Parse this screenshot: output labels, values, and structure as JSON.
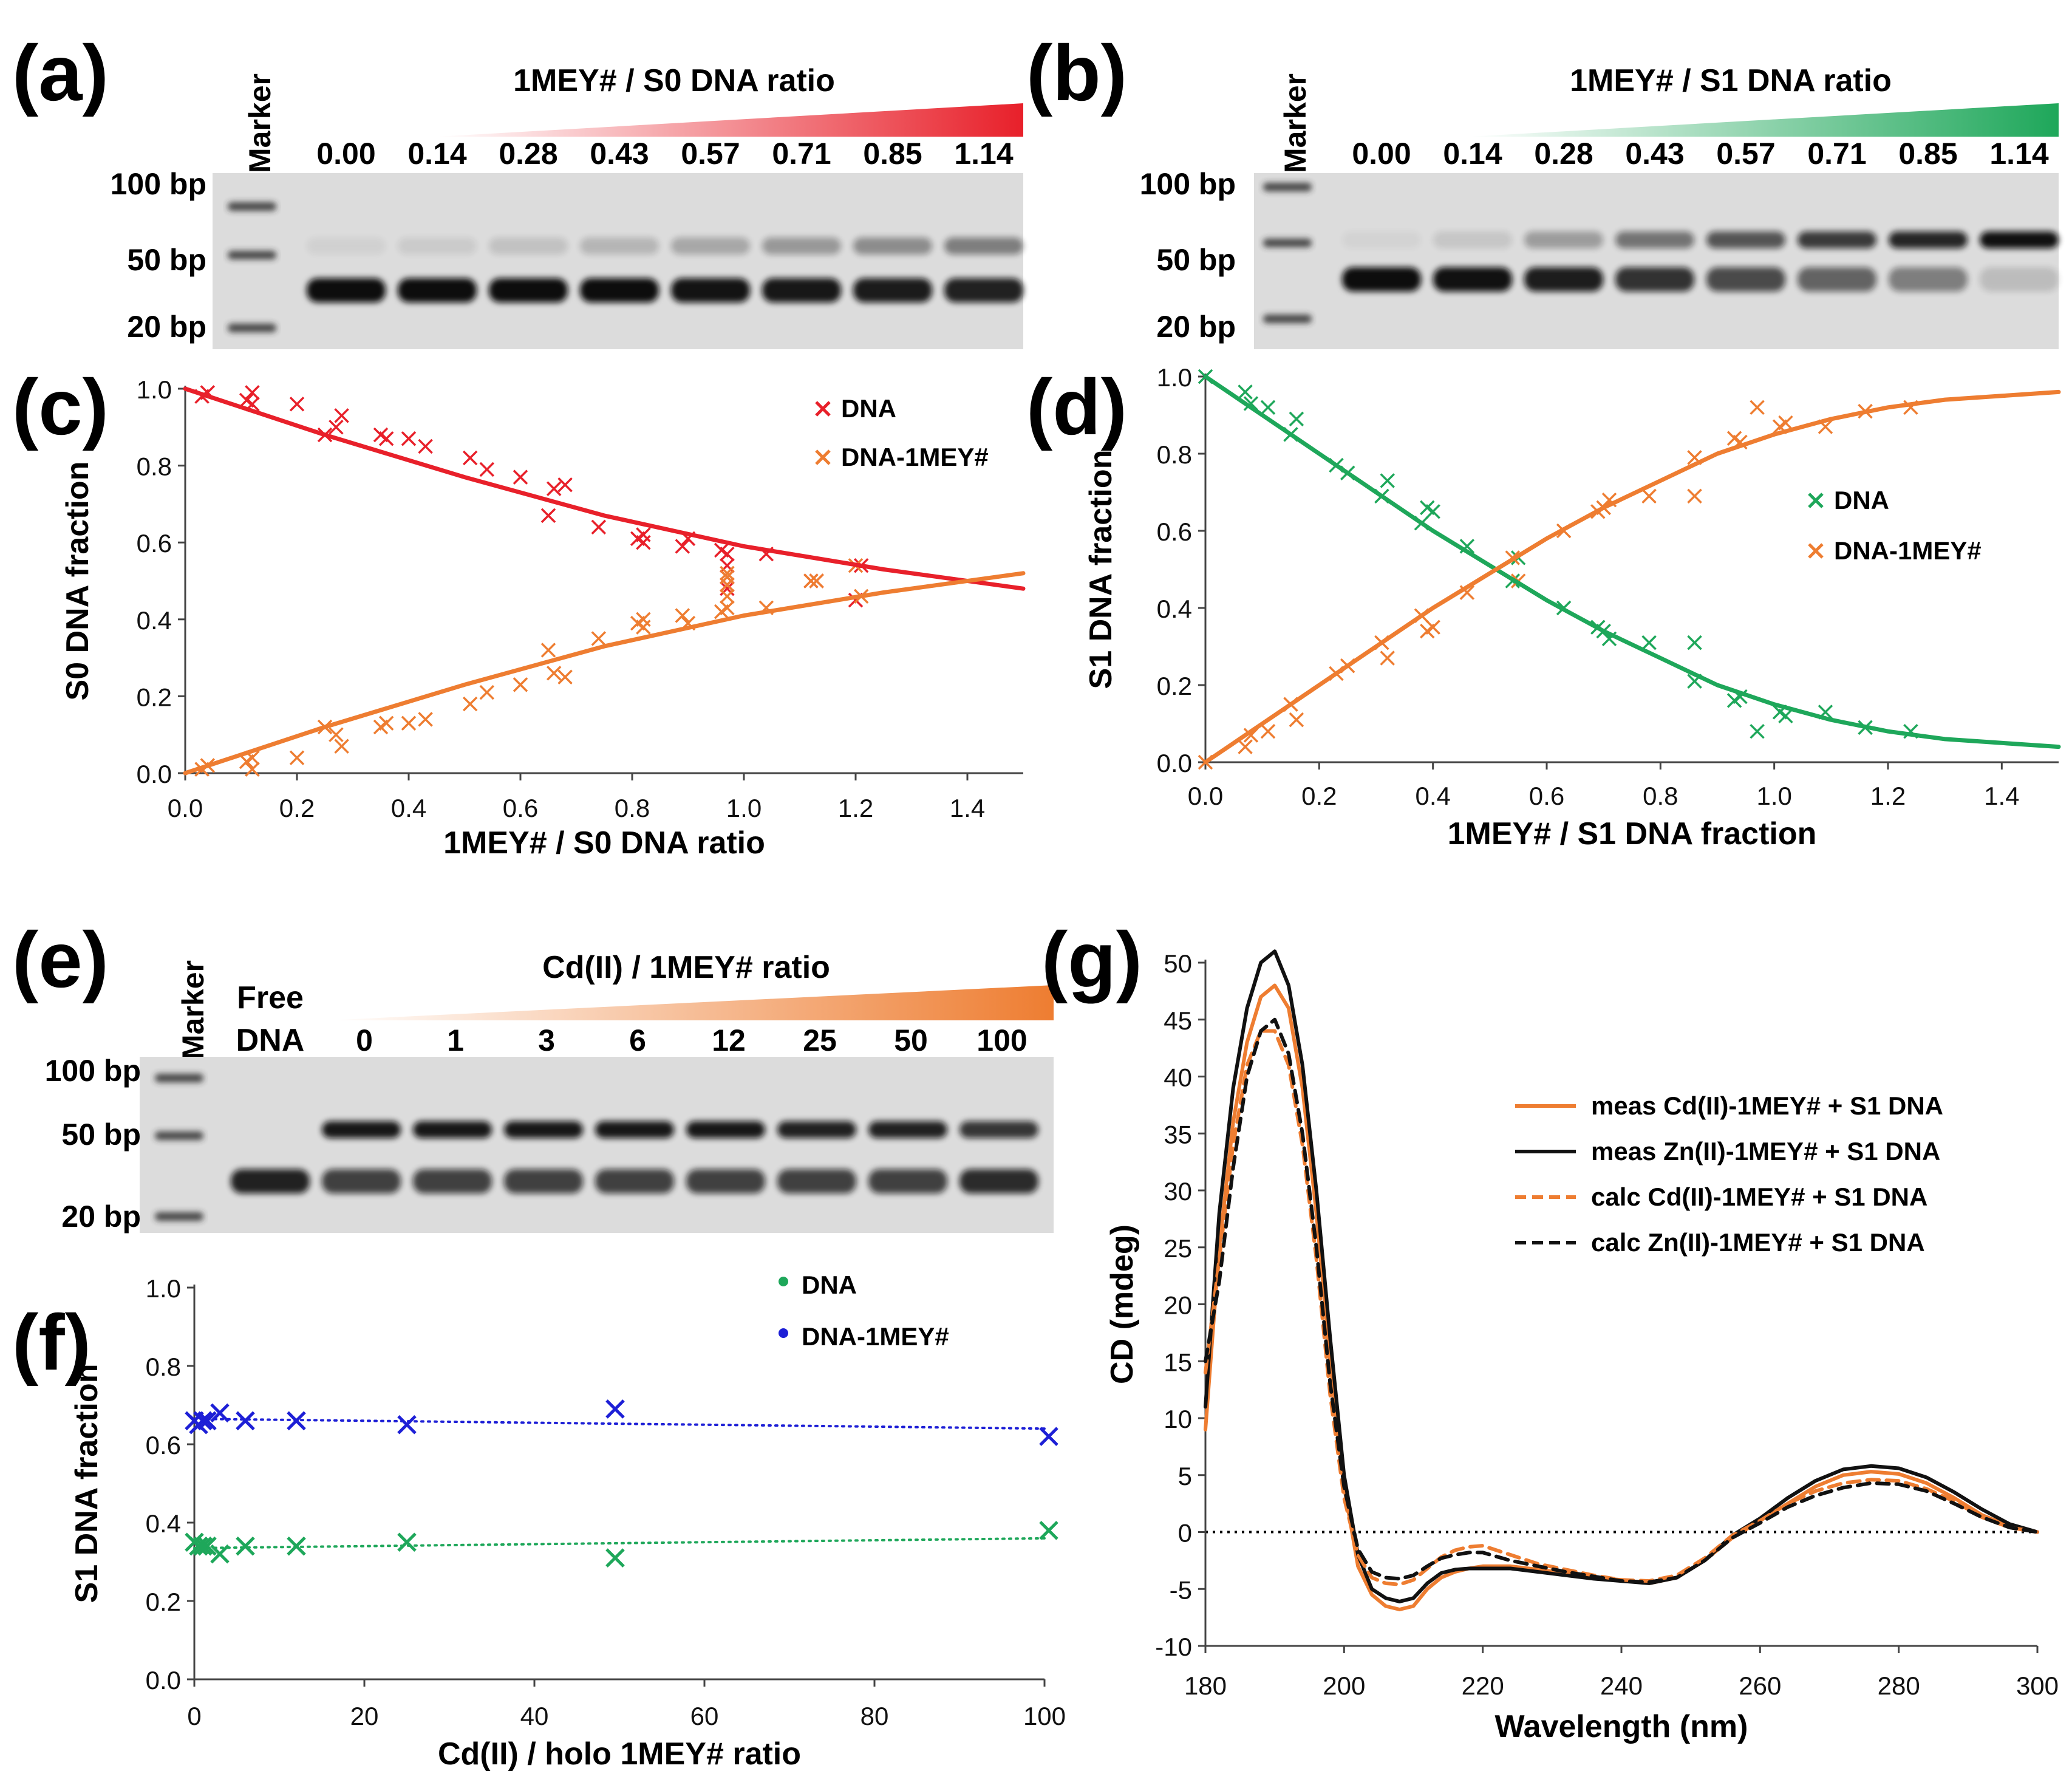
{
  "colors": {
    "red": "#e8202a",
    "orange": "#ee7d31",
    "green": "#1ea75a",
    "blue": "#1d1fd6",
    "black": "#111111",
    "gel_bg": "#dcdcdc"
  },
  "panel_a": {
    "letter": "(a)",
    "title": "1MEY# / S0 DNA ratio",
    "marker_label": "Marker",
    "lanes": [
      "0.00",
      "0.14",
      "0.28",
      "0.43",
      "0.57",
      "0.71",
      "0.85",
      "1.14"
    ],
    "size_labels": [
      "100 bp",
      "50 bp",
      "20 bp"
    ],
    "complex_band_intensity": [
      0.05,
      0.08,
      0.12,
      0.18,
      0.25,
      0.32,
      0.38,
      0.45
    ],
    "free_band_intensity": [
      1.0,
      1.0,
      1.0,
      1.0,
      0.97,
      0.95,
      0.93,
      0.9
    ]
  },
  "panel_b": {
    "letter": "(b)",
    "title": "1MEY# / S1 DNA ratio",
    "marker_label": "Marker",
    "lanes": [
      "0.00",
      "0.14",
      "0.28",
      "0.43",
      "0.57",
      "0.71",
      "0.85",
      "1.14"
    ],
    "size_labels": [
      "100 bp",
      "50 bp",
      "20 bp"
    ],
    "complex_band_intensity": [
      0.04,
      0.1,
      0.3,
      0.5,
      0.65,
      0.78,
      0.88,
      0.98
    ],
    "free_band_intensity": [
      1.0,
      0.98,
      0.92,
      0.82,
      0.7,
      0.58,
      0.45,
      0.15
    ]
  },
  "panel_e": {
    "letter": "(e)",
    "title": "Cd(II) / 1MEY# ratio",
    "marker_label": "Marker",
    "free_dna_label": [
      "Free",
      "DNA"
    ],
    "lanes": [
      "0",
      "1",
      "3",
      "6",
      "12",
      "25",
      "50",
      "100"
    ],
    "size_labels": [
      "100 bp",
      "50 bp",
      "20 bp"
    ],
    "complex_band_intensity": [
      0.0,
      0.95,
      0.95,
      0.95,
      0.95,
      0.95,
      0.9,
      0.9,
      0.8
    ],
    "free_band_intensity": [
      0.9,
      0.75,
      0.75,
      0.75,
      0.75,
      0.75,
      0.75,
      0.75,
      0.85
    ]
  },
  "chart_data": [
    {
      "id": "c",
      "letter": "(c)",
      "type": "scatter",
      "xlabel": "1MEY# / S0 DNA ratio",
      "ylabel": "S0 DNA fraction",
      "xlim": [
        0,
        1.5
      ],
      "ylim": [
        0,
        1.0
      ],
      "xticks": [
        "0.0",
        "0.2",
        "0.4",
        "0.6",
        "0.8",
        "1.0",
        "1.2",
        "1.4"
      ],
      "yticks": [
        "0.0",
        "0.2",
        "0.4",
        "0.6",
        "0.8",
        "1.0"
      ],
      "legend": [
        "DNA",
        "DNA-1MEY#"
      ],
      "series": [
        {
          "name": "DNA",
          "color": "red",
          "x": [
            0.03,
            0.04,
            0.11,
            0.12,
            0.12,
            0.2,
            0.25,
            0.27,
            0.28,
            0.35,
            0.36,
            0.4,
            0.43,
            0.51,
            0.54,
            0.6,
            0.65,
            0.66,
            0.68,
            0.74,
            0.81,
            0.82,
            0.82,
            0.89,
            0.9,
            0.96,
            0.97,
            0.97,
            0.97,
            0.97,
            0.97,
            1.04,
            1.12,
            1.13,
            1.2,
            1.21
          ],
          "y": [
            0.98,
            0.99,
            0.97,
            0.99,
            0.96,
            0.96,
            0.88,
            0.9,
            0.93,
            0.88,
            0.87,
            0.87,
            0.85,
            0.82,
            0.79,
            0.77,
            0.67,
            0.74,
            0.75,
            0.64,
            0.61,
            0.62,
            0.6,
            0.59,
            0.61,
            0.58,
            0.54,
            0.51,
            0.49,
            0.48,
            0.57,
            0.57,
            0.5,
            0.5,
            0.45,
            0.54
          ]
        },
        {
          "name": "DNA-1MEY#",
          "color": "orange",
          "x": [
            0.03,
            0.04,
            0.11,
            0.12,
            0.12,
            0.2,
            0.25,
            0.27,
            0.28,
            0.35,
            0.36,
            0.4,
            0.43,
            0.51,
            0.54,
            0.6,
            0.65,
            0.66,
            0.68,
            0.74,
            0.81,
            0.82,
            0.82,
            0.89,
            0.9,
            0.96,
            0.97,
            0.97,
            0.97,
            0.97,
            0.97,
            1.04,
            1.12,
            1.13,
            1.2,
            1.21
          ],
          "y": [
            0.01,
            0.02,
            0.03,
            0.01,
            0.04,
            0.04,
            0.12,
            0.1,
            0.07,
            0.12,
            0.13,
            0.13,
            0.14,
            0.18,
            0.21,
            0.23,
            0.32,
            0.26,
            0.25,
            0.35,
            0.39,
            0.38,
            0.4,
            0.41,
            0.39,
            0.42,
            0.46,
            0.49,
            0.51,
            0.52,
            0.43,
            0.43,
            0.5,
            0.5,
            0.54,
            0.46
          ]
        },
        {
          "name": "DNA fit",
          "color": "red",
          "line": true,
          "x": [
            0,
            0.25,
            0.5,
            0.75,
            1.0,
            1.25,
            1.5
          ],
          "y": [
            1.0,
            0.88,
            0.77,
            0.67,
            0.59,
            0.53,
            0.48
          ]
        },
        {
          "name": "DNA-1MEY# fit",
          "color": "orange",
          "line": true,
          "x": [
            0,
            0.25,
            0.5,
            0.75,
            1.0,
            1.25,
            1.5
          ],
          "y": [
            0.0,
            0.12,
            0.23,
            0.33,
            0.41,
            0.47,
            0.52
          ]
        }
      ]
    },
    {
      "id": "d",
      "letter": "(d)",
      "type": "scatter",
      "xlabel": "1MEY# / S1 DNA fraction",
      "ylabel": "S1 DNA fraction",
      "xlim": [
        0,
        1.5
      ],
      "ylim": [
        0,
        1.0
      ],
      "xticks": [
        "0.0",
        "0.2",
        "0.4",
        "0.6",
        "0.8",
        "1.0",
        "1.2",
        "1.4"
      ],
      "yticks": [
        "0.0",
        "0.2",
        "0.4",
        "0.6",
        "0.8",
        "1.0"
      ],
      "legend": [
        "DNA",
        "DNA-1MEY#"
      ],
      "series": [
        {
          "name": "DNA",
          "color": "green",
          "x": [
            0.0,
            0.07,
            0.08,
            0.11,
            0.15,
            0.16,
            0.23,
            0.25,
            0.31,
            0.32,
            0.38,
            0.39,
            0.4,
            0.46,
            0.54,
            0.55,
            0.63,
            0.69,
            0.7,
            0.71,
            0.78,
            0.86,
            0.86,
            0.93,
            0.94,
            0.97,
            1.01,
            1.02,
            1.09,
            1.16,
            1.24
          ],
          "y": [
            1.0,
            0.96,
            0.93,
            0.92,
            0.85,
            0.89,
            0.77,
            0.75,
            0.69,
            0.73,
            0.62,
            0.66,
            0.65,
            0.56,
            0.47,
            0.53,
            0.4,
            0.35,
            0.34,
            0.32,
            0.31,
            0.21,
            0.31,
            0.16,
            0.17,
            0.08,
            0.13,
            0.12,
            0.13,
            0.09,
            0.08
          ]
        },
        {
          "name": "DNA-1MEY#",
          "color": "orange",
          "x": [
            0.0,
            0.07,
            0.08,
            0.11,
            0.15,
            0.16,
            0.23,
            0.25,
            0.31,
            0.32,
            0.38,
            0.39,
            0.4,
            0.46,
            0.54,
            0.55,
            0.63,
            0.69,
            0.7,
            0.71,
            0.78,
            0.86,
            0.86,
            0.93,
            0.94,
            0.97,
            1.01,
            1.02,
            1.09,
            1.16,
            1.24
          ],
          "y": [
            0.0,
            0.04,
            0.07,
            0.08,
            0.15,
            0.11,
            0.23,
            0.25,
            0.31,
            0.27,
            0.38,
            0.34,
            0.35,
            0.44,
            0.53,
            0.47,
            0.6,
            0.65,
            0.66,
            0.68,
            0.69,
            0.79,
            0.69,
            0.84,
            0.83,
            0.92,
            0.87,
            0.88,
            0.87,
            0.91,
            0.92
          ]
        },
        {
          "name": "DNA fit",
          "color": "green",
          "line": true,
          "x": [
            0,
            0.1,
            0.2,
            0.3,
            0.4,
            0.5,
            0.6,
            0.7,
            0.8,
            0.9,
            1.0,
            1.1,
            1.2,
            1.3,
            1.4,
            1.5
          ],
          "y": [
            1.0,
            0.9,
            0.8,
            0.7,
            0.6,
            0.51,
            0.42,
            0.34,
            0.27,
            0.2,
            0.15,
            0.11,
            0.08,
            0.06,
            0.05,
            0.04
          ]
        },
        {
          "name": "DNA-1MEY# fit",
          "color": "orange",
          "line": true,
          "x": [
            0,
            0.1,
            0.2,
            0.3,
            0.4,
            0.5,
            0.6,
            0.7,
            0.8,
            0.9,
            1.0,
            1.1,
            1.2,
            1.3,
            1.4,
            1.5
          ],
          "y": [
            0.0,
            0.1,
            0.2,
            0.3,
            0.4,
            0.49,
            0.58,
            0.66,
            0.73,
            0.8,
            0.85,
            0.89,
            0.92,
            0.94,
            0.95,
            0.96
          ]
        }
      ]
    },
    {
      "id": "f",
      "letter": "(f)",
      "type": "scatter",
      "xlabel": "Cd(II) / holo 1MEY# ratio",
      "ylabel": "S1 DNA fraction",
      "xlim": [
        0,
        100
      ],
      "ylim": [
        0,
        1.0
      ],
      "xticks": [
        "0",
        "20",
        "40",
        "60",
        "80",
        "100"
      ],
      "yticks": [
        "0.0",
        "0.2",
        "0.4",
        "0.6",
        "0.8",
        "1.0"
      ],
      "legend": [
        "DNA",
        "DNA-1MEY#"
      ],
      "series": [
        {
          "name": "DNA",
          "color": "green",
          "x": [
            0,
            0.5,
            1,
            1.5,
            3,
            6,
            12,
            25,
            49.5,
            100.5
          ],
          "y": [
            0.35,
            0.34,
            0.34,
            0.34,
            0.32,
            0.34,
            0.34,
            0.35,
            0.31,
            0.38
          ]
        },
        {
          "name": "DNA-1MEY#",
          "color": "blue",
          "x": [
            0,
            0.5,
            1,
            1.5,
            3,
            6,
            12,
            25,
            49.5,
            100.5
          ],
          "y": [
            0.66,
            0.65,
            0.66,
            0.66,
            0.68,
            0.66,
            0.66,
            0.65,
            0.69,
            0.62
          ]
        },
        {
          "name": "DNA trend",
          "color": "green",
          "line": true,
          "dotted": true,
          "x": [
            0,
            100
          ],
          "y": [
            0.335,
            0.36
          ]
        },
        {
          "name": "DNA-1MEY# trend",
          "color": "blue",
          "line": true,
          "dotted": true,
          "x": [
            0,
            100
          ],
          "y": [
            0.665,
            0.64
          ]
        }
      ]
    },
    {
      "id": "g",
      "letter": "(g)",
      "type": "line",
      "xlabel": "Wavelength (nm)",
      "ylabel": "CD (mdeg)",
      "xlim": [
        180,
        300
      ],
      "ylim": [
        -10,
        50
      ],
      "xticks": [
        "180",
        "200",
        "220",
        "240",
        "260",
        "280",
        "300"
      ],
      "yticks": [
        "-10",
        "-5",
        "0",
        "5",
        "10",
        "15",
        "20",
        "25",
        "30",
        "35",
        "40",
        "45",
        "50"
      ],
      "series": [
        {
          "name": "meas Cd(II)-1MEY# + S1 DNA",
          "color": "orange",
          "x": [
            180,
            182,
            184,
            186,
            188,
            190,
            192,
            194,
            196,
            198,
            200,
            202,
            204,
            206,
            208,
            210,
            212,
            214,
            216,
            218,
            220,
            224,
            228,
            232,
            236,
            240,
            244,
            248,
            252,
            256,
            260,
            264,
            268,
            272,
            276,
            280,
            284,
            288,
            292,
            296,
            300
          ],
          "y": [
            9,
            25,
            36,
            43,
            47,
            48,
            46,
            39,
            28,
            15,
            4,
            -3,
            -5.5,
            -6.5,
            -6.8,
            -6.5,
            -5,
            -4,
            -3.5,
            -3.2,
            -3,
            -3,
            -3.3,
            -3.6,
            -4,
            -4.2,
            -4.5,
            -4,
            -2.5,
            -0.5,
            1,
            2.5,
            4,
            5,
            5.3,
            5.1,
            4.3,
            3,
            1.5,
            0.5,
            0
          ]
        },
        {
          "name": "meas Zn(II)-1MEY# + S1 DNA",
          "color": "black",
          "x": [
            180,
            182,
            184,
            186,
            188,
            190,
            192,
            194,
            196,
            198,
            200,
            202,
            204,
            206,
            208,
            210,
            212,
            214,
            216,
            218,
            220,
            224,
            228,
            232,
            236,
            240,
            244,
            248,
            252,
            256,
            260,
            264,
            268,
            272,
            276,
            280,
            284,
            288,
            292,
            296,
            300
          ],
          "y": [
            11,
            28,
            39,
            46,
            50,
            51,
            48,
            41,
            30,
            17,
            5,
            -2,
            -5,
            -5.8,
            -6.1,
            -5.8,
            -4.5,
            -3.6,
            -3.3,
            -3.2,
            -3.2,
            -3.2,
            -3.5,
            -3.8,
            -4.1,
            -4.3,
            -4.5,
            -4,
            -2.5,
            -0.3,
            1.2,
            3,
            4.5,
            5.5,
            5.8,
            5.6,
            4.8,
            3.5,
            2,
            0.7,
            0
          ]
        },
        {
          "name": "calc Cd(II)-1MEY# + S1 DNA",
          "color": "orange",
          "dashed": true,
          "x": [
            180,
            182,
            184,
            186,
            188,
            190,
            192,
            194,
            196,
            198,
            200,
            202,
            204,
            206,
            208,
            210,
            212,
            214,
            216,
            218,
            220,
            224,
            228,
            232,
            236,
            240,
            244,
            248,
            252,
            256,
            260,
            264,
            268,
            272,
            276,
            280,
            284,
            288,
            292,
            296,
            300
          ],
          "y": [
            14,
            24,
            34,
            41,
            44,
            44,
            41,
            34,
            24,
            12,
            3,
            -2,
            -4,
            -4.5,
            -4.6,
            -4.2,
            -3.2,
            -2.2,
            -1.6,
            -1.3,
            -1.2,
            -2,
            -2.8,
            -3.3,
            -3.8,
            -4.2,
            -4.3,
            -3.8,
            -2.3,
            -0.3,
            1,
            2.5,
            3.6,
            4.3,
            4.6,
            4.5,
            3.8,
            2.7,
            1.3,
            0.4,
            0
          ]
        },
        {
          "name": "calc Zn(II)-1MEY# + S1 DNA",
          "color": "black",
          "dashed": true,
          "x": [
            180,
            182,
            184,
            186,
            188,
            190,
            192,
            194,
            196,
            198,
            200,
            202,
            204,
            206,
            208,
            210,
            212,
            214,
            216,
            218,
            220,
            224,
            228,
            232,
            236,
            240,
            244,
            248,
            252,
            256,
            260,
            264,
            268,
            272,
            276,
            280,
            284,
            288,
            292,
            296,
            300
          ],
          "y": [
            15,
            22,
            32,
            40,
            44,
            45,
            42,
            35,
            25,
            13,
            4,
            -1.5,
            -3.5,
            -4,
            -4.1,
            -3.8,
            -3,
            -2.3,
            -2,
            -1.8,
            -1.8,
            -2.5,
            -3,
            -3.5,
            -3.9,
            -4.3,
            -4.4,
            -4,
            -2.5,
            -0.5,
            0.8,
            2.2,
            3.2,
            3.9,
            4.3,
            4.2,
            3.6,
            2.5,
            1.3,
            0.4,
            0
          ]
        }
      ]
    }
  ]
}
